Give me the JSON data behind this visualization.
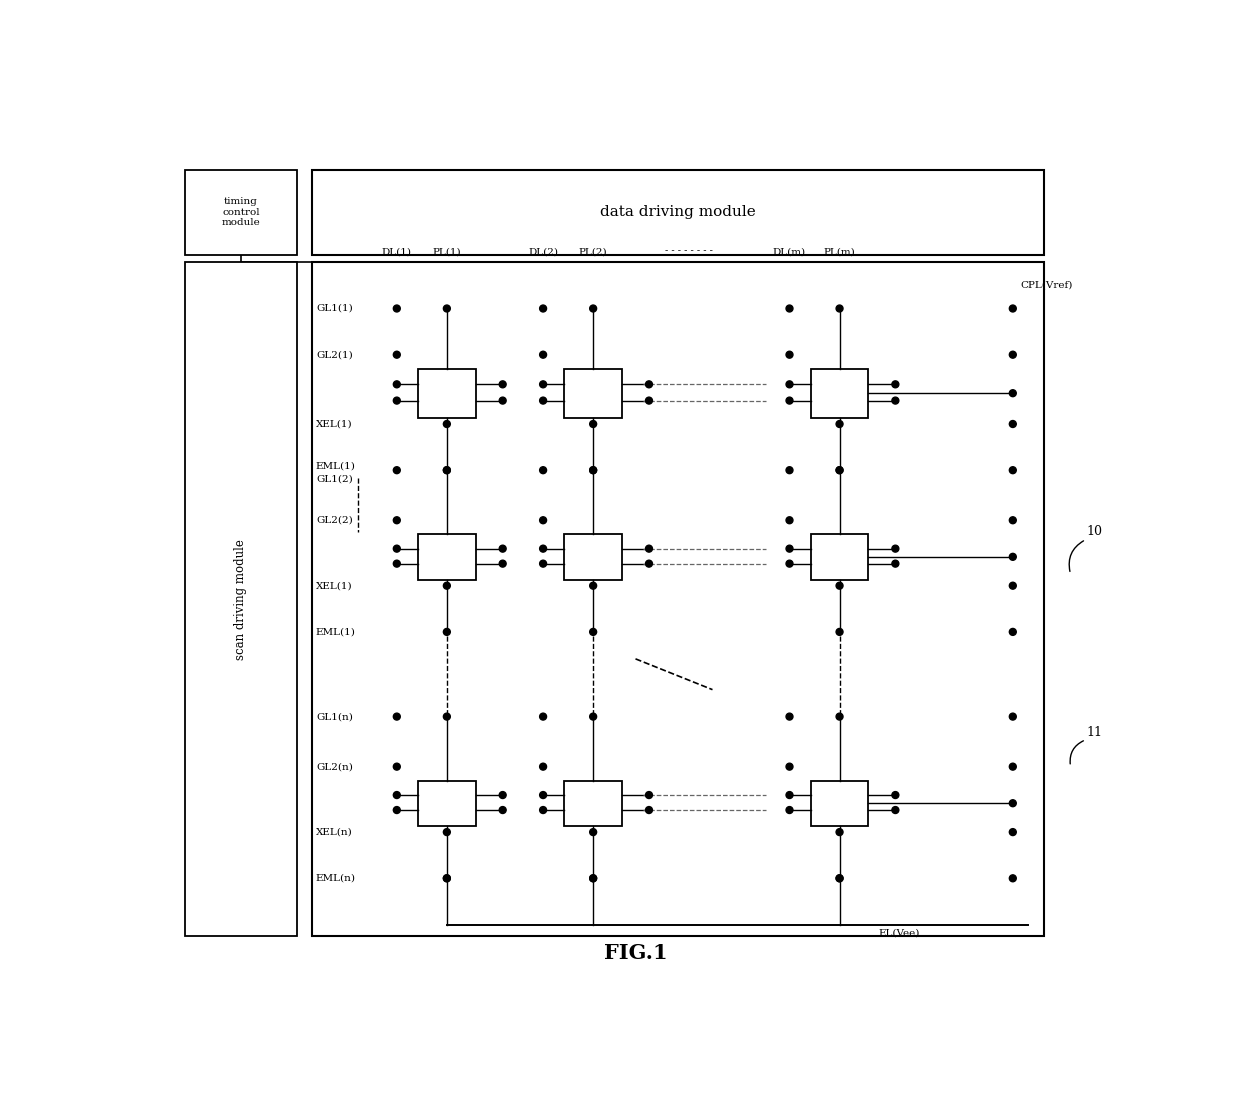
{
  "bg_color": "#ffffff",
  "fig_width": 12.4,
  "fig_height": 10.95,
  "dpi": 100,
  "title": "FIG.1",
  "timing_label": "timing\ncontrol\nmodule",
  "data_label": "data driving module",
  "scan_label": "scan driving module",
  "col_headers": [
    "DL(1)",
    "PL(1)",
    "DL(2)",
    "PL(2)",
    "DL(m)",
    "PL(m)"
  ],
  "row_labels": [
    "GL1(1)",
    "GL2(1)",
    "XEL(1)",
    "EML(1)",
    "GL1(2)",
    "GL2(2)",
    "XEL(1)",
    "EML(1)",
    "GL1(n)",
    "GL2(n)",
    "XEL(n)",
    "EML(n)"
  ],
  "cpl_label": "CPL(Vref)",
  "el_label": "EL(Vee)",
  "ref10": "10",
  "ref11": "11"
}
